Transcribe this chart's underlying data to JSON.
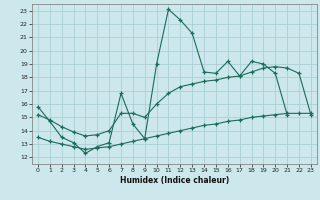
{
  "xlabel": "Humidex (Indice chaleur)",
  "bg_color": "#cce8ec",
  "grid_color": "#aacfd5",
  "line_color": "#1a6b5a",
  "xlim": [
    -0.5,
    23.5
  ],
  "ylim": [
    11.5,
    23.5
  ],
  "xticks": [
    0,
    1,
    2,
    3,
    4,
    5,
    6,
    7,
    8,
    9,
    10,
    11,
    12,
    13,
    14,
    15,
    16,
    17,
    18,
    19,
    20,
    21,
    22,
    23
  ],
  "yticks": [
    12,
    13,
    14,
    15,
    16,
    17,
    18,
    19,
    20,
    21,
    22,
    23
  ],
  "line1_x": [
    0,
    1,
    2,
    3,
    4,
    5,
    6,
    7,
    8,
    9,
    10,
    11,
    12,
    13,
    14,
    15,
    16,
    17,
    18,
    19,
    20,
    21
  ],
  "line1_y": [
    15.8,
    14.7,
    13.5,
    13.1,
    12.3,
    12.8,
    13.1,
    16.8,
    14.5,
    13.4,
    19.0,
    23.1,
    22.3,
    21.3,
    18.4,
    18.3,
    19.2,
    18.1,
    19.2,
    19.0,
    18.3,
    15.2
  ],
  "line2_x": [
    0,
    1,
    2,
    3,
    4,
    5,
    6,
    7,
    8,
    9,
    10,
    11,
    12,
    13,
    14,
    15,
    16,
    17,
    18,
    19,
    20,
    21,
    22,
    23
  ],
  "line2_y": [
    15.2,
    14.8,
    14.3,
    13.9,
    13.6,
    13.7,
    14.0,
    15.3,
    15.3,
    15.0,
    16.0,
    16.8,
    17.3,
    17.5,
    17.7,
    17.8,
    18.0,
    18.1,
    18.4,
    18.7,
    18.8,
    18.7,
    18.3,
    15.2
  ],
  "line3_x": [
    0,
    1,
    2,
    3,
    4,
    5,
    6,
    7,
    8,
    9,
    10,
    11,
    12,
    13,
    14,
    15,
    16,
    17,
    18,
    19,
    20,
    21,
    22,
    23
  ],
  "line3_y": [
    13.5,
    13.2,
    13.0,
    12.8,
    12.6,
    12.7,
    12.8,
    13.0,
    13.2,
    13.4,
    13.6,
    13.8,
    14.0,
    14.2,
    14.4,
    14.5,
    14.7,
    14.8,
    15.0,
    15.1,
    15.2,
    15.3,
    15.3,
    15.3
  ]
}
